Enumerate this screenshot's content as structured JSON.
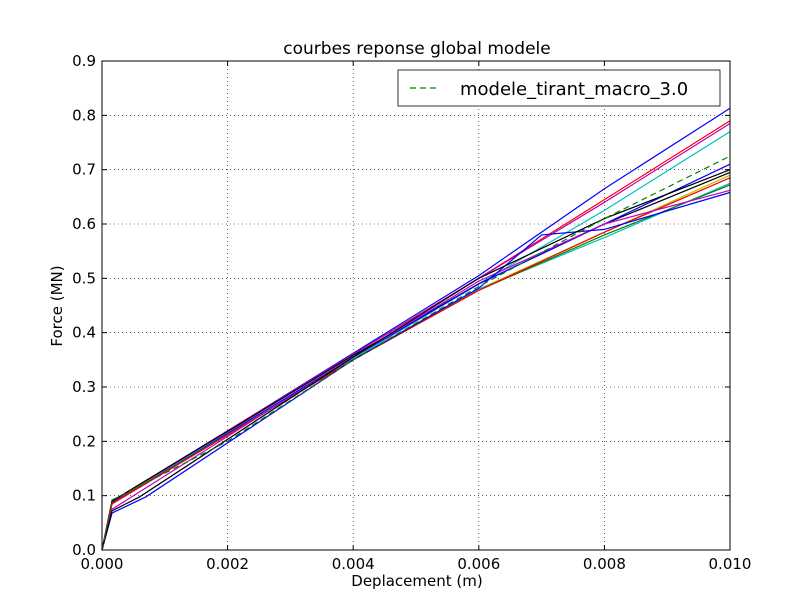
{
  "chart_data": {
    "type": "line",
    "title": "courbes reponse global modele",
    "xlabel": "Deplacement (m)",
    "ylabel": "Force (MN)",
    "xlim": [
      0,
      0.01
    ],
    "ylim": [
      0,
      0.9
    ],
    "x_ticks": [
      "0.000",
      "0.002",
      "0.004",
      "0.006",
      "0.008",
      "0.010"
    ],
    "y_ticks": [
      "0.0",
      "0.1",
      "0.2",
      "0.3",
      "0.4",
      "0.5",
      "0.6",
      "0.7",
      "0.8",
      "0.9"
    ],
    "grid": true,
    "legend": {
      "position": "top-right",
      "entries": [
        "modele_tirant_macro_3.0"
      ]
    },
    "series": [
      {
        "name": "modele_tirant_macro_3.0",
        "color": "#008000",
        "style": "dashed",
        "points": [
          [
            0,
            0
          ],
          [
            0.00016,
            0.092
          ],
          [
            0.002,
            0.2
          ],
          [
            0.004,
            0.35
          ],
          [
            0.006,
            0.485
          ],
          [
            0.008,
            0.61
          ],
          [
            0.01,
            0.725
          ]
        ]
      },
      {
        "color": "#0000ff",
        "style": "solid",
        "points": [
          [
            0,
            0
          ],
          [
            0.00016,
            0.088
          ],
          [
            0.004,
            0.362
          ],
          [
            0.006,
            0.505
          ],
          [
            0.008,
            0.665
          ],
          [
            0.01,
            0.813
          ]
        ]
      },
      {
        "color": "#ff0000",
        "style": "solid",
        "points": [
          [
            0,
            0
          ],
          [
            0.00016,
            0.086
          ],
          [
            0.004,
            0.36
          ],
          [
            0.006,
            0.5
          ],
          [
            0.008,
            0.645
          ],
          [
            0.01,
            0.79
          ]
        ]
      },
      {
        "color": "#bf00bf",
        "style": "solid",
        "points": [
          [
            0,
            0
          ],
          [
            0.00016,
            0.09
          ],
          [
            0.004,
            0.36
          ],
          [
            0.006,
            0.5
          ],
          [
            0.008,
            0.64
          ],
          [
            0.01,
            0.785
          ]
        ]
      },
      {
        "color": "#00bfbf",
        "style": "solid",
        "points": [
          [
            0,
            0
          ],
          [
            0.00016,
            0.09
          ],
          [
            0.004,
            0.352
          ],
          [
            0.006,
            0.49
          ],
          [
            0.008,
            0.625
          ],
          [
            0.01,
            0.77
          ]
        ]
      },
      {
        "color": "#000000",
        "style": "solid",
        "points": [
          [
            0,
            0
          ],
          [
            0.00016,
            0.09
          ],
          [
            0.004,
            0.358
          ],
          [
            0.006,
            0.49
          ],
          [
            0.008,
            0.6
          ],
          [
            0.01,
            0.695
          ]
        ]
      },
      {
        "color": "#0000ff",
        "style": "solid",
        "points": [
          [
            0,
            0
          ],
          [
            0.00016,
            0.085
          ],
          [
            0.004,
            0.355
          ],
          [
            0.006,
            0.49
          ],
          [
            0.008,
            0.6
          ],
          [
            0.01,
            0.71
          ]
        ]
      },
      {
        "color": "#bfbf00",
        "style": "solid",
        "points": [
          [
            0,
            0
          ],
          [
            0.00016,
            0.085
          ],
          [
            0.004,
            0.35
          ],
          [
            0.006,
            0.48
          ],
          [
            0.008,
            0.585
          ],
          [
            0.01,
            0.69
          ]
        ]
      },
      {
        "color": "#00bfbf",
        "style": "solid",
        "points": [
          [
            0,
            0
          ],
          [
            0.00016,
            0.085
          ],
          [
            0.004,
            0.35
          ],
          [
            0.006,
            0.48
          ],
          [
            0.008,
            0.575
          ],
          [
            0.01,
            0.675
          ]
        ]
      },
      {
        "color": "#008000",
        "style": "solid",
        "points": [
          [
            0,
            0
          ],
          [
            0.00016,
            0.085
          ],
          [
            0.004,
            0.35
          ],
          [
            0.006,
            0.478
          ],
          [
            0.008,
            0.58
          ],
          [
            0.01,
            0.672
          ]
        ]
      },
      {
        "color": "#ff0000",
        "style": "solid",
        "points": [
          [
            0,
            0
          ],
          [
            0.00016,
            0.085
          ],
          [
            0.004,
            0.35
          ],
          [
            0.006,
            0.478
          ],
          [
            0.008,
            0.585
          ],
          [
            0.01,
            0.685
          ]
        ]
      },
      {
        "color": "#bf00bf",
        "style": "solid",
        "points": [
          [
            0,
            0
          ],
          [
            0.00016,
            0.075
          ],
          [
            0.004,
            0.355
          ],
          [
            0.006,
            0.495
          ],
          [
            0.008,
            0.6
          ],
          [
            0.01,
            0.662
          ]
        ]
      },
      {
        "color": "#0000ff",
        "style": "solid",
        "points": [
          [
            0,
            0
          ],
          [
            0.00016,
            0.068
          ],
          [
            0.0007,
            0.098
          ],
          [
            0.004,
            0.35
          ],
          [
            0.006,
            0.482
          ],
          [
            0.007,
            0.58
          ],
          [
            0.008,
            0.59
          ],
          [
            0.01,
            0.658
          ]
        ]
      },
      {
        "color": "#000000",
        "style": "solid",
        "points": [
          [
            0,
            0
          ],
          [
            0.00016,
            0.072
          ],
          [
            0.0006,
            0.098
          ],
          [
            0.004,
            0.355
          ],
          [
            0.006,
            0.5
          ],
          [
            0.008,
            0.61
          ],
          [
            0.01,
            0.7
          ]
        ]
      }
    ]
  }
}
